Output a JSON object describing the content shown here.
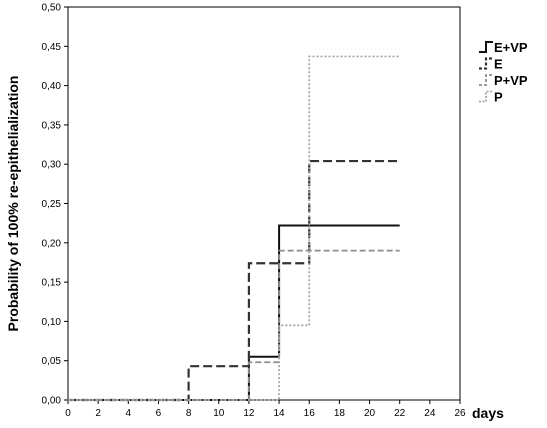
{
  "chart_data": {
    "type": "line",
    "step": true,
    "ylabel": "Probability of 100% re-epithelialization",
    "xlabel": "days",
    "xlim": [
      0,
      26
    ],
    "ylim": [
      0,
      0.5
    ],
    "xticks": [
      "0",
      "2",
      "4",
      "6",
      "8",
      "10",
      "12",
      "14",
      "16",
      "18",
      "20",
      "22",
      "24",
      "26"
    ],
    "yticks": [
      "0,00",
      "0,05",
      "0,10",
      "0,15",
      "0,20",
      "0,25",
      "0,30",
      "0,35",
      "0,40",
      "0,45",
      "0,50"
    ],
    "grid": false,
    "legend_position": "right",
    "series": [
      {
        "name": "E+VP",
        "color": "#111111",
        "dash": "solid",
        "x": [
          0,
          12,
          14,
          22
        ],
        "y": [
          0.0,
          0.055,
          0.222,
          0.222
        ]
      },
      {
        "name": "E",
        "color": "#333333",
        "dash": "long-dash",
        "x": [
          0,
          8,
          12,
          16,
          22
        ],
        "y": [
          0.0,
          0.043,
          0.174,
          0.304,
          0.304
        ]
      },
      {
        "name": "P+VP",
        "color": "#8c8c8c",
        "dash": "dash",
        "x": [
          0,
          12,
          14,
          22
        ],
        "y": [
          0.0,
          0.048,
          0.19,
          0.19
        ]
      },
      {
        "name": "P",
        "color": "#a8a8a8",
        "dash": "dot",
        "x": [
          0,
          14,
          16,
          22
        ],
        "y": [
          0.0,
          0.095,
          0.437,
          0.437
        ]
      }
    ]
  }
}
